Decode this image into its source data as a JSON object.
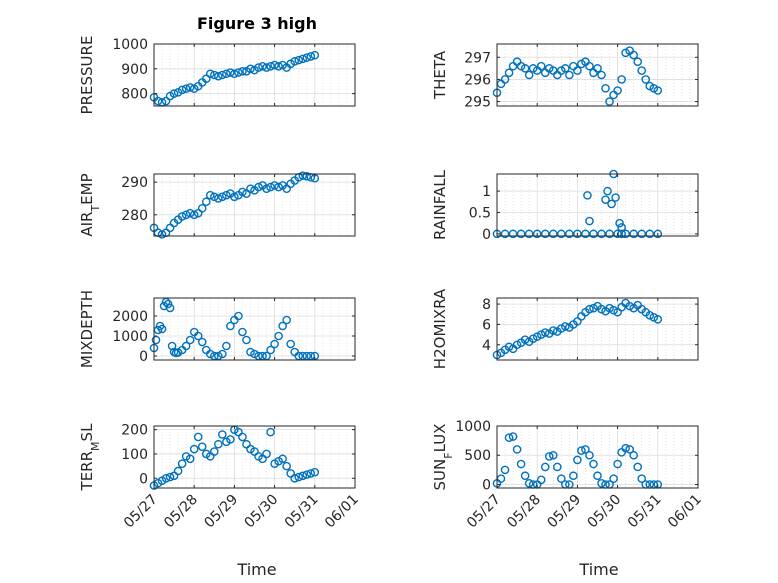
{
  "figure": {
    "title": "Figure 3 high",
    "marker_color": "#0072BD",
    "x_ticks": [
      "05/27",
      "05/28",
      "05/29",
      "05/30",
      "05/31",
      "06/01"
    ],
    "xlabel": "Time"
  },
  "chart_data": [
    {
      "type": "scatter",
      "ylabel": "PRESSURE",
      "xlim": [
        0,
        5
      ],
      "ylim": [
        750,
        1000
      ],
      "yticks": [
        800,
        900,
        1000
      ],
      "grid": true,
      "x": [
        0,
        0.1,
        0.2,
        0.3,
        0.4,
        0.5,
        0.6,
        0.7,
        0.8,
        0.9,
        1.0,
        1.1,
        1.2,
        1.3,
        1.4,
        1.5,
        1.6,
        1.7,
        1.8,
        1.9,
        2.0,
        2.1,
        2.2,
        2.3,
        2.4,
        2.5,
        2.6,
        2.7,
        2.8,
        2.9,
        3.0,
        3.1,
        3.2,
        3.3,
        3.4,
        3.5,
        3.6,
        3.7,
        3.8,
        3.9,
        4.0
      ],
      "y": [
        785,
        770,
        765,
        770,
        790,
        800,
        805,
        815,
        820,
        825,
        820,
        830,
        845,
        860,
        880,
        875,
        870,
        875,
        880,
        885,
        880,
        885,
        890,
        890,
        900,
        895,
        905,
        910,
        905,
        910,
        915,
        910,
        915,
        905,
        920,
        930,
        935,
        940,
        945,
        950,
        955
      ]
    },
    {
      "type": "scatter",
      "ylabel": "THETA",
      "xlim": [
        0,
        5
      ],
      "ylim": [
        294.8,
        297.6
      ],
      "yticks": [
        295,
        296,
        297
      ],
      "grid": true,
      "x": [
        0,
        0.1,
        0.2,
        0.3,
        0.4,
        0.5,
        0.6,
        0.7,
        0.8,
        0.9,
        1.0,
        1.1,
        1.2,
        1.3,
        1.4,
        1.5,
        1.6,
        1.7,
        1.8,
        1.9,
        2.0,
        2.1,
        2.2,
        2.3,
        2.4,
        2.5,
        2.6,
        2.7,
        2.8,
        2.9,
        3.0,
        3.1,
        3.2,
        3.3,
        3.4,
        3.5,
        3.6,
        3.7,
        3.8,
        3.9,
        4.0
      ],
      "y": [
        295.4,
        295.8,
        296.0,
        296.3,
        296.6,
        296.8,
        296.6,
        296.5,
        296.2,
        296.5,
        296.4,
        296.6,
        296.3,
        296.5,
        296.4,
        296.2,
        296.4,
        296.5,
        296.2,
        296.6,
        296.4,
        296.7,
        296.8,
        296.6,
        296.3,
        296.5,
        296.2,
        295.6,
        295.0,
        295.3,
        295.5,
        296.0,
        297.2,
        297.3,
        297.1,
        296.8,
        296.4,
        296.0,
        295.7,
        295.6,
        295.5
      ]
    },
    {
      "type": "scatter",
      "ylabel": "AIR_TEMP",
      "xlim": [
        0,
        5
      ],
      "ylim": [
        273.5,
        292.5
      ],
      "yticks": [
        280,
        290
      ],
      "grid": true,
      "x": [
        0,
        0.1,
        0.2,
        0.3,
        0.4,
        0.5,
        0.6,
        0.7,
        0.8,
        0.9,
        1.0,
        1.1,
        1.2,
        1.3,
        1.4,
        1.5,
        1.6,
        1.7,
        1.8,
        1.9,
        2.0,
        2.1,
        2.2,
        2.3,
        2.4,
        2.5,
        2.6,
        2.7,
        2.8,
        2.9,
        3.0,
        3.1,
        3.2,
        3.3,
        3.4,
        3.5,
        3.6,
        3.7,
        3.8,
        3.9,
        4.0
      ],
      "y": [
        276,
        274.5,
        274,
        274.5,
        276,
        277.5,
        278.5,
        279.5,
        280,
        280.5,
        280,
        280.5,
        282,
        284,
        286,
        285.5,
        285,
        285.5,
        286,
        286.5,
        285.5,
        286,
        287,
        286.5,
        288,
        287.5,
        288.5,
        289,
        288,
        288.5,
        289,
        288.5,
        289,
        288,
        289.5,
        290.5,
        291.5,
        292,
        291.8,
        291.5,
        291.2
      ]
    },
    {
      "type": "scatter",
      "ylabel": "RAINFALL",
      "xlim": [
        0,
        5
      ],
      "ylim": [
        -0.05,
        1.4
      ],
      "yticks": [
        0,
        0.5,
        1
      ],
      "grid": true,
      "x": [
        0,
        0.2,
        0.4,
        0.6,
        0.8,
        1.0,
        1.2,
        1.4,
        1.6,
        1.8,
        2.0,
        2.2,
        2.4,
        2.6,
        2.8,
        2.85,
        2.9,
        2.95,
        3.0,
        3.1,
        3.2,
        3.4,
        3.6,
        3.8,
        4.0,
        2.3,
        2.25,
        2.7,
        2.75,
        3.05,
        3.1
      ],
      "y": [
        0,
        0,
        0,
        0,
        0,
        0,
        0,
        0,
        0,
        0,
        0,
        0,
        0,
        0,
        0,
        0.7,
        1.4,
        0.85,
        0,
        0,
        0,
        0,
        0,
        0,
        0,
        0.3,
        0.9,
        0.8,
        1.0,
        0.25,
        0.15
      ]
    },
    {
      "type": "scatter",
      "ylabel": "MIXDEPTH",
      "xlim": [
        0,
        5
      ],
      "ylim": [
        -200,
        2900
      ],
      "yticks": [
        0,
        1000,
        2000
      ],
      "grid": true,
      "x": [
        0,
        0.05,
        0.1,
        0.15,
        0.2,
        0.25,
        0.3,
        0.35,
        0.4,
        0.45,
        0.5,
        0.55,
        0.6,
        0.7,
        0.8,
        0.9,
        1.0,
        1.1,
        1.2,
        1.3,
        1.4,
        1.5,
        1.6,
        1.7,
        1.8,
        1.9,
        2.0,
        2.1,
        2.2,
        2.3,
        2.4,
        2.5,
        2.6,
        2.7,
        2.8,
        2.9,
        3.0,
        3.1,
        3.2,
        3.3,
        3.4,
        3.5,
        3.6,
        3.7,
        3.8,
        3.9,
        4.0
      ],
      "y": [
        400,
        800,
        1300,
        1500,
        1350,
        2500,
        2700,
        2600,
        2400,
        500,
        200,
        150,
        180,
        300,
        500,
        800,
        1200,
        1000,
        700,
        300,
        100,
        0,
        0,
        100,
        500,
        1500,
        1800,
        2000,
        1200,
        800,
        200,
        100,
        0,
        0,
        0,
        300,
        600,
        1000,
        1500,
        1800,
        600,
        200,
        0,
        0,
        0,
        0,
        0
      ]
    },
    {
      "type": "scatter",
      "ylabel": "H2OMIXRA",
      "xlim": [
        0,
        5
      ],
      "ylim": [
        2.5,
        8.6
      ],
      "yticks": [
        4,
        6,
        8
      ],
      "grid": true,
      "x": [
        0,
        0.1,
        0.2,
        0.3,
        0.4,
        0.5,
        0.6,
        0.7,
        0.8,
        0.9,
        1.0,
        1.1,
        1.2,
        1.3,
        1.4,
        1.5,
        1.6,
        1.7,
        1.8,
        1.9,
        2.0,
        2.1,
        2.2,
        2.3,
        2.4,
        2.5,
        2.6,
        2.7,
        2.8,
        2.9,
        3.0,
        3.1,
        3.2,
        3.3,
        3.4,
        3.5,
        3.6,
        3.7,
        3.8,
        3.9,
        4.0
      ],
      "y": [
        3.0,
        3.2,
        3.5,
        3.8,
        3.6,
        4.0,
        4.2,
        4.5,
        4.3,
        4.6,
        4.8,
        5.0,
        5.2,
        5.1,
        5.4,
        5.3,
        5.6,
        5.8,
        5.7,
        6.0,
        6.3,
        6.8,
        7.2,
        7.5,
        7.6,
        7.8,
        7.5,
        7.3,
        7.6,
        7.4,
        7.2,
        7.7,
        8.1,
        7.8,
        7.6,
        7.9,
        7.5,
        7.2,
        6.9,
        6.7,
        6.5
      ]
    },
    {
      "type": "scatter",
      "ylabel": "TERR_MSL",
      "xlim": [
        0,
        5
      ],
      "ylim": [
        -40,
        215
      ],
      "yticks": [
        0,
        100,
        200
      ],
      "grid": true,
      "x": [
        0,
        0.1,
        0.2,
        0.3,
        0.4,
        0.5,
        0.6,
        0.7,
        0.8,
        0.9,
        1.0,
        1.1,
        1.2,
        1.3,
        1.4,
        1.5,
        1.6,
        1.7,
        1.8,
        1.9,
        2.0,
        2.1,
        2.2,
        2.3,
        2.4,
        2.5,
        2.6,
        2.7,
        2.8,
        2.9,
        3.0,
        3.1,
        3.2,
        3.3,
        3.4,
        3.5,
        3.6,
        3.7,
        3.8,
        3.9,
        4.0
      ],
      "y": [
        -30,
        -20,
        -10,
        0,
        5,
        10,
        30,
        60,
        90,
        80,
        120,
        170,
        130,
        100,
        90,
        110,
        140,
        180,
        150,
        160,
        200,
        190,
        170,
        140,
        120,
        110,
        90,
        80,
        100,
        190,
        60,
        70,
        80,
        50,
        20,
        0,
        5,
        10,
        15,
        20,
        25
      ]
    },
    {
      "type": "scatter",
      "ylabel": "SUN_FLUX",
      "xlim": [
        0,
        5
      ],
      "ylim": [
        -60,
        1000
      ],
      "yticks": [
        0,
        500,
        1000
      ],
      "grid": true,
      "x": [
        0,
        0.1,
        0.2,
        0.3,
        0.4,
        0.5,
        0.6,
        0.7,
        0.8,
        0.9,
        1.0,
        1.1,
        1.2,
        1.3,
        1.4,
        1.5,
        1.6,
        1.7,
        1.8,
        1.9,
        2.0,
        2.1,
        2.2,
        2.3,
        2.4,
        2.5,
        2.6,
        2.7,
        2.8,
        2.9,
        3.0,
        3.1,
        3.2,
        3.3,
        3.4,
        3.5,
        3.6,
        3.7,
        3.8,
        3.9,
        4.0
      ],
      "y": [
        20,
        100,
        250,
        800,
        820,
        600,
        350,
        150,
        20,
        0,
        0,
        80,
        300,
        480,
        500,
        300,
        100,
        0,
        0,
        150,
        420,
        580,
        600,
        500,
        350,
        150,
        20,
        0,
        0,
        100,
        350,
        550,
        620,
        600,
        500,
        300,
        100,
        0,
        0,
        0,
        0
      ]
    }
  ]
}
